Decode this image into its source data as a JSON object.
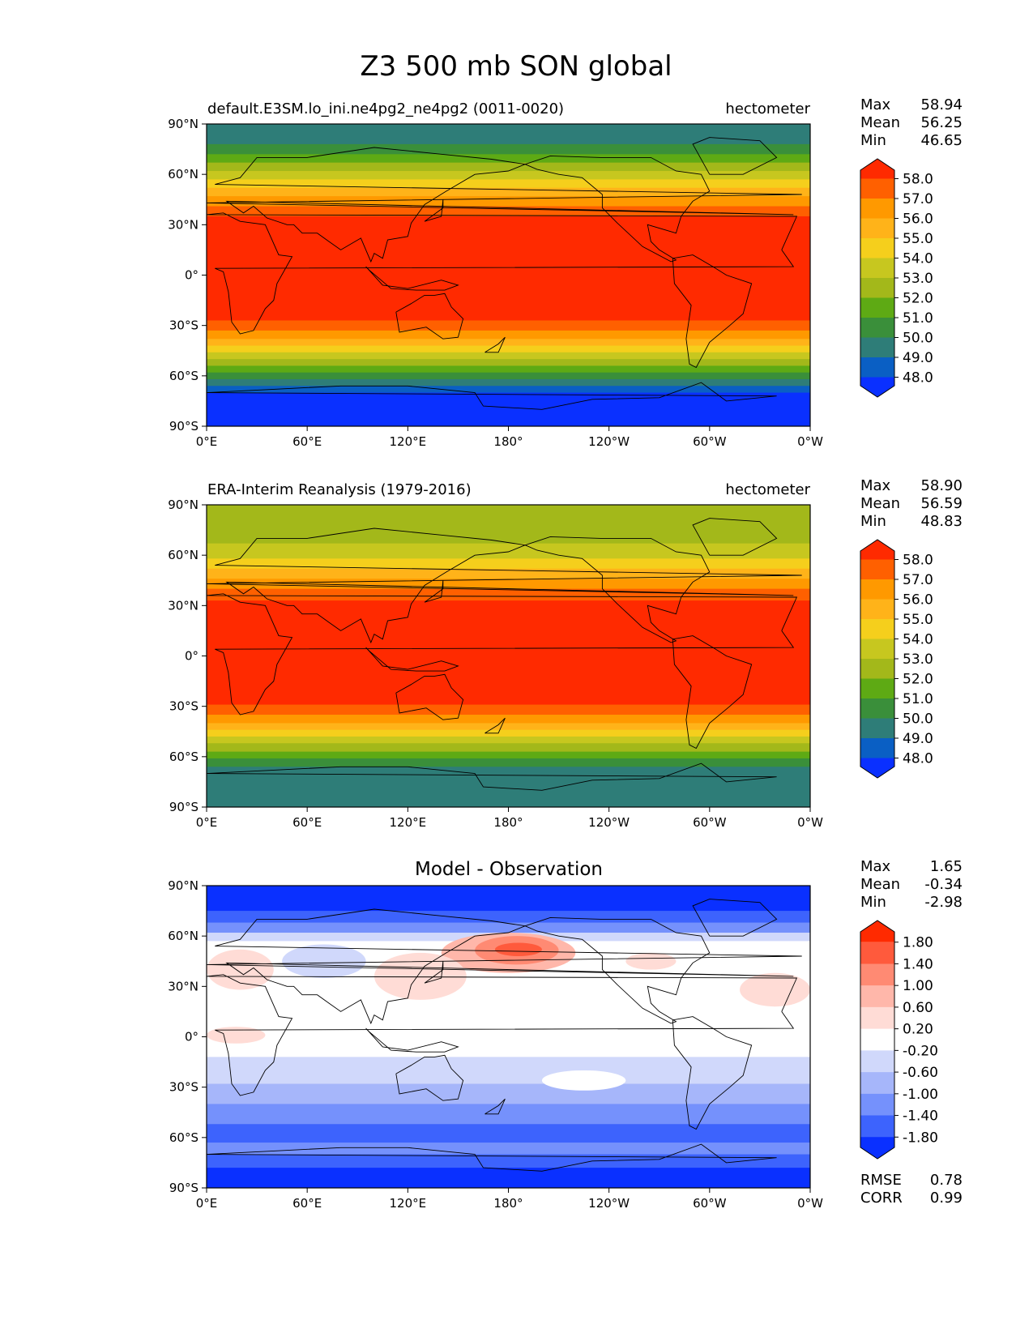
{
  "figure": {
    "title": "Z3 500 mb SON global"
  },
  "axes": {
    "y_ticks": [
      "90°N",
      "60°N",
      "30°N",
      "0°",
      "30°S",
      "60°S",
      "90°S"
    ],
    "x_ticks": [
      "0°E",
      "60°E",
      "120°E",
      "180°",
      "120°W",
      "60°W",
      "0°W"
    ]
  },
  "chart_data": [
    {
      "type": "heatmap",
      "title": "default.E3SM.lo_ini.ne4pg2_ne4pg2 (0011-0020)",
      "units": "hectometer",
      "stats": {
        "max_label": "Max",
        "max": "58.94",
        "mean_label": "Mean",
        "mean": "56.25",
        "min_label": "Min",
        "min": "46.65"
      },
      "colorbar": {
        "levels": [
          "58.0",
          "57.0",
          "56.0",
          "55.0",
          "54.0",
          "53.0",
          "52.0",
          "51.0",
          "50.0",
          "49.0",
          "48.0"
        ],
        "colors": [
          "#ff2a00",
          "#ff6000",
          "#ff9900",
          "#ffb319",
          "#f5cf1c",
          "#c7c71f",
          "#a3b81a",
          "#5eaa14",
          "#3a8f3a",
          "#2e7d78",
          "#0a5fc4",
          "#0a30ff"
        ]
      },
      "latitude_bands": [
        {
          "lat_from": 90,
          "lat_to": 78,
          "color": "#2e7d78"
        },
        {
          "lat_from": 78,
          "lat_to": 72,
          "color": "#3a8f3a"
        },
        {
          "lat_from": 72,
          "lat_to": 67,
          "color": "#5eaa14"
        },
        {
          "lat_from": 67,
          "lat_to": 62,
          "color": "#a3b81a"
        },
        {
          "lat_from": 62,
          "lat_to": 57,
          "color": "#c7c71f"
        },
        {
          "lat_from": 57,
          "lat_to": 52,
          "color": "#f5cf1c"
        },
        {
          "lat_from": 52,
          "lat_to": 47,
          "color": "#ffb319"
        },
        {
          "lat_from": 47,
          "lat_to": 41,
          "color": "#ff9900"
        },
        {
          "lat_from": 41,
          "lat_to": 35,
          "color": "#ff6000"
        },
        {
          "lat_from": 35,
          "lat_to": -27,
          "color": "#ff2a00"
        },
        {
          "lat_from": -27,
          "lat_to": -33,
          "color": "#ff6000"
        },
        {
          "lat_from": -33,
          "lat_to": -38,
          "color": "#ff9900"
        },
        {
          "lat_from": -38,
          "lat_to": -42,
          "color": "#ffb319"
        },
        {
          "lat_from": -42,
          "lat_to": -46,
          "color": "#f5cf1c"
        },
        {
          "lat_from": -46,
          "lat_to": -50,
          "color": "#c7c71f"
        },
        {
          "lat_from": -50,
          "lat_to": -54,
          "color": "#a3b81a"
        },
        {
          "lat_from": -54,
          "lat_to": -58,
          "color": "#5eaa14"
        },
        {
          "lat_from": -58,
          "lat_to": -62,
          "color": "#3a8f3a"
        },
        {
          "lat_from": -62,
          "lat_to": -66,
          "color": "#2e7d78"
        },
        {
          "lat_from": -66,
          "lat_to": -70,
          "color": "#0a5fc4"
        },
        {
          "lat_from": -70,
          "lat_to": -90,
          "color": "#0a30ff"
        }
      ]
    },
    {
      "type": "heatmap",
      "title": "ERA-Interim Reanalysis (1979-2016)",
      "units": "hectometer",
      "stats": {
        "max_label": "Max",
        "max": "58.90",
        "mean_label": "Mean",
        "mean": "56.59",
        "min_label": "Min",
        "min": "48.83"
      },
      "colorbar": {
        "levels": [
          "58.0",
          "57.0",
          "56.0",
          "55.0",
          "54.0",
          "53.0",
          "52.0",
          "51.0",
          "50.0",
          "49.0",
          "48.0"
        ],
        "colors": [
          "#ff2a00",
          "#ff6000",
          "#ff9900",
          "#ffb319",
          "#f5cf1c",
          "#c7c71f",
          "#a3b81a",
          "#5eaa14",
          "#3a8f3a",
          "#2e7d78",
          "#0a5fc4",
          "#0a30ff"
        ]
      },
      "latitude_bands": [
        {
          "lat_from": 90,
          "lat_to": 67,
          "color": "#a3b81a"
        },
        {
          "lat_from": 67,
          "lat_to": 58,
          "color": "#c7c71f"
        },
        {
          "lat_from": 58,
          "lat_to": 52,
          "color": "#f5cf1c"
        },
        {
          "lat_from": 52,
          "lat_to": 46,
          "color": "#ffb319"
        },
        {
          "lat_from": 46,
          "lat_to": 40,
          "color": "#ff9900"
        },
        {
          "lat_from": 40,
          "lat_to": 33,
          "color": "#ff6000"
        },
        {
          "lat_from": 33,
          "lat_to": -29,
          "color": "#ff2a00"
        },
        {
          "lat_from": -29,
          "lat_to": -35,
          "color": "#ff6000"
        },
        {
          "lat_from": -35,
          "lat_to": -40,
          "color": "#ff9900"
        },
        {
          "lat_from": -40,
          "lat_to": -44,
          "color": "#ffb319"
        },
        {
          "lat_from": -44,
          "lat_to": -48,
          "color": "#f5cf1c"
        },
        {
          "lat_from": -48,
          "lat_to": -52,
          "color": "#c7c71f"
        },
        {
          "lat_from": -52,
          "lat_to": -57,
          "color": "#a3b81a"
        },
        {
          "lat_from": -57,
          "lat_to": -61,
          "color": "#5eaa14"
        },
        {
          "lat_from": -61,
          "lat_to": -66,
          "color": "#3a8f3a"
        },
        {
          "lat_from": -66,
          "lat_to": -90,
          "color": "#2e7d78"
        }
      ]
    },
    {
      "type": "heatmap",
      "title": "Model - Observation",
      "units": "",
      "stats": {
        "max_label": "Max",
        "max": "1.65",
        "mean_label": "Mean",
        "mean": "-0.34",
        "min_label": "Min",
        "min": "-2.98"
      },
      "colorbar": {
        "levels": [
          "1.80",
          "1.40",
          "1.00",
          "0.60",
          "0.20",
          "-0.20",
          "-0.60",
          "-1.00",
          "-1.40",
          "-1.80"
        ],
        "colors": [
          "#ff2a00",
          "#ff5a3c",
          "#ff8a73",
          "#ffb7aa",
          "#ffdcd6",
          "#ffffff",
          "#d0d8fb",
          "#a6b6fa",
          "#7591fc",
          "#3d63fd",
          "#0a30ff"
        ]
      },
      "latitude_bands": [
        {
          "lat_from": 90,
          "lat_to": 75,
          "color": "#0a30ff"
        },
        {
          "lat_from": 75,
          "lat_to": 68,
          "color": "#3d63fd"
        },
        {
          "lat_from": 68,
          "lat_to": 62,
          "color": "#7591fc"
        },
        {
          "lat_from": 62,
          "lat_to": 57,
          "color": "#d0d8fb"
        },
        {
          "lat_from": 57,
          "lat_to": -12,
          "color": "#ffffff"
        },
        {
          "lat_from": -12,
          "lat_to": -28,
          "color": "#d0d8fb"
        },
        {
          "lat_from": -28,
          "lat_to": -40,
          "color": "#a6b6fa"
        },
        {
          "lat_from": -40,
          "lat_to": -52,
          "color": "#7591fc"
        },
        {
          "lat_from": -52,
          "lat_to": -63,
          "color": "#3d63fd"
        },
        {
          "lat_from": -63,
          "lat_to": -70,
          "color": "#7591fc"
        },
        {
          "lat_from": -70,
          "lat_to": -78,
          "color": "#3d63fd"
        },
        {
          "lat_from": -78,
          "lat_to": -90,
          "color": "#0a30ff"
        }
      ],
      "anomaly_patches": [
        {
          "lon_from": 140,
          "lon_to": 220,
          "lat_from": 62,
          "lat_to": 38,
          "color": "#ffb7aa"
        },
        {
          "lon_from": 160,
          "lon_to": 210,
          "lat_from": 60,
          "lat_to": 43,
          "color": "#ff8a73"
        },
        {
          "lon_from": 172,
          "lon_to": 200,
          "lat_from": 56,
          "lat_to": 48,
          "color": "#ff5a3c"
        },
        {
          "lon_from": 0,
          "lon_to": 40,
          "lat_from": 52,
          "lat_to": 28,
          "color": "#ffdcd6"
        },
        {
          "lon_from": 0,
          "lon_to": 35,
          "lat_from": 6,
          "lat_to": -4,
          "color": "#ffdcd6"
        },
        {
          "lon_from": 100,
          "lon_to": 155,
          "lat_from": 50,
          "lat_to": 22,
          "color": "#ffdcd6"
        },
        {
          "lon_from": 250,
          "lon_to": 280,
          "lat_from": 50,
          "lat_to": 40,
          "color": "#ffdcd6"
        },
        {
          "lon_from": 318,
          "lon_to": 360,
          "lat_from": 38,
          "lat_to": 18,
          "color": "#ffdcd6"
        },
        {
          "lon_from": 45,
          "lon_to": 95,
          "lat_from": 55,
          "lat_to": 35,
          "color": "#d0d8fb"
        },
        {
          "lon_from": 200,
          "lon_to": 250,
          "lat_from": -20,
          "lat_to": -32,
          "color": "#ffffff"
        }
      ],
      "rmse_label": "RMSE",
      "rmse": "0.78",
      "corr_label": "CORR",
      "corr": "0.99"
    }
  ]
}
